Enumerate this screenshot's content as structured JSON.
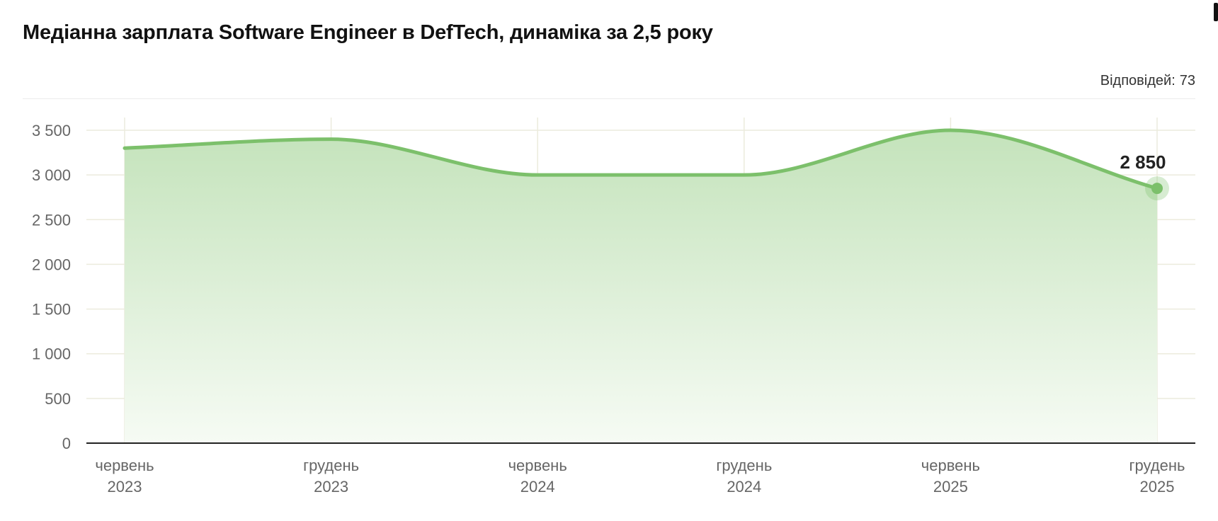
{
  "header": {
    "title": "Медіанна зарплата Software Engineer в DefTech, динаміка за 2,5 року",
    "responses_label": "Відповідей:",
    "responses_value": "73"
  },
  "colors": {
    "line": "#7cc06b",
    "fill_top": "#c4e3bb",
    "fill_bottom": "#f6fbf4",
    "grid": "#ecebdd",
    "axis": "#222222"
  },
  "chart_data": {
    "type": "area",
    "title": "Медіанна зарплата Software Engineer в DefTech, динаміка за 2,5 року",
    "xlabel": "",
    "ylabel": "",
    "categories": [
      [
        "червень",
        "2023"
      ],
      [
        "грудень",
        "2023"
      ],
      [
        "червень",
        "2024"
      ],
      [
        "грудень",
        "2024"
      ],
      [
        "червень",
        "2025"
      ],
      [
        "грудень",
        "2025"
      ]
    ],
    "values": [
      3300,
      3400,
      3000,
      3000,
      3500,
      2850
    ],
    "ylim": [
      0,
      3500
    ],
    "yticks": [
      0,
      500,
      1000,
      1500,
      2000,
      2500,
      3000,
      3500
    ],
    "ytick_labels": [
      "0",
      "500",
      "1 000",
      "1 500",
      "2 000",
      "2 500",
      "3 000",
      "3 500"
    ],
    "grid": true,
    "last_point_label": "2 850"
  }
}
